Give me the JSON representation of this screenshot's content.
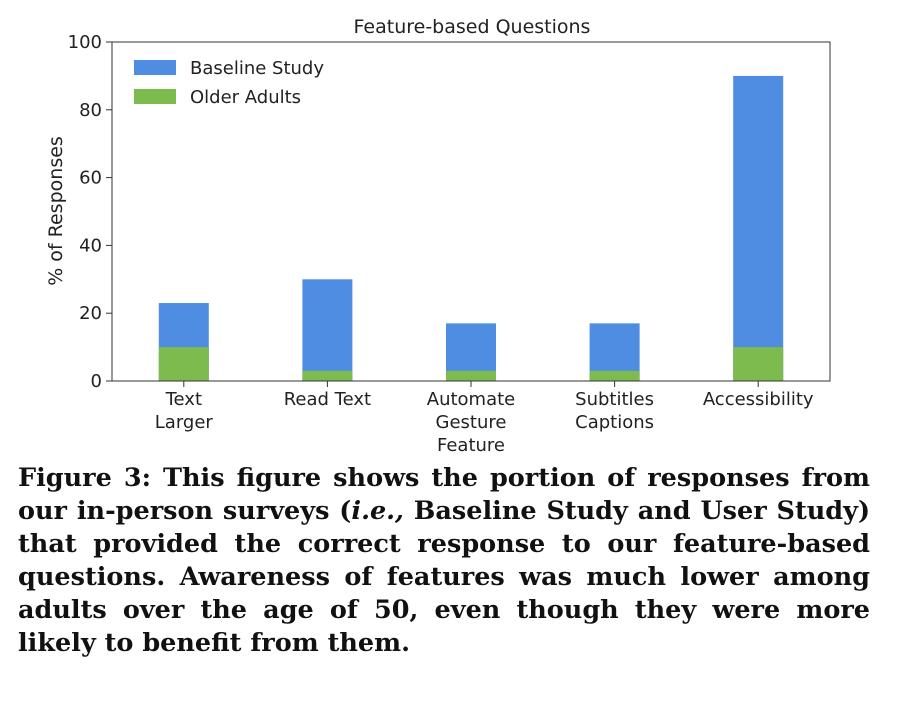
{
  "chart_data": {
    "type": "bar",
    "stacked": true,
    "title": "Feature-based Questions",
    "xlabel": "",
    "ylabel": "% of Responses",
    "ylim": [
      0,
      100
    ],
    "yticks": [
      "0",
      "20",
      "40",
      "60",
      "80",
      "100"
    ],
    "grid": false,
    "legend_position": "top-left",
    "categories": [
      [
        "Text",
        "Larger"
      ],
      [
        "Read Text"
      ],
      [
        "Automate",
        "Gesture",
        "Feature"
      ],
      [
        "Subtitles",
        "Captions"
      ],
      [
        "Accessibility"
      ]
    ],
    "series": [
      {
        "name": "Baseline Study",
        "color": "#4f8de3",
        "values": [
          23,
          30,
          17,
          17,
          90
        ]
      },
      {
        "name": "Older Adults",
        "color": "#7dbb4f",
        "values": [
          10,
          3,
          3,
          3,
          10
        ]
      }
    ]
  },
  "caption": {
    "label": "Figure 3:",
    "part1": " This figure shows the portion of responses from our in-person surveys (",
    "ie": "i.e.,",
    "part2": " Baseline Study and User Study) that provided the correct response to our feature-based questions. Awareness of features was much lower among adults over the age of 50, even though they were more likely to benefit from them."
  }
}
